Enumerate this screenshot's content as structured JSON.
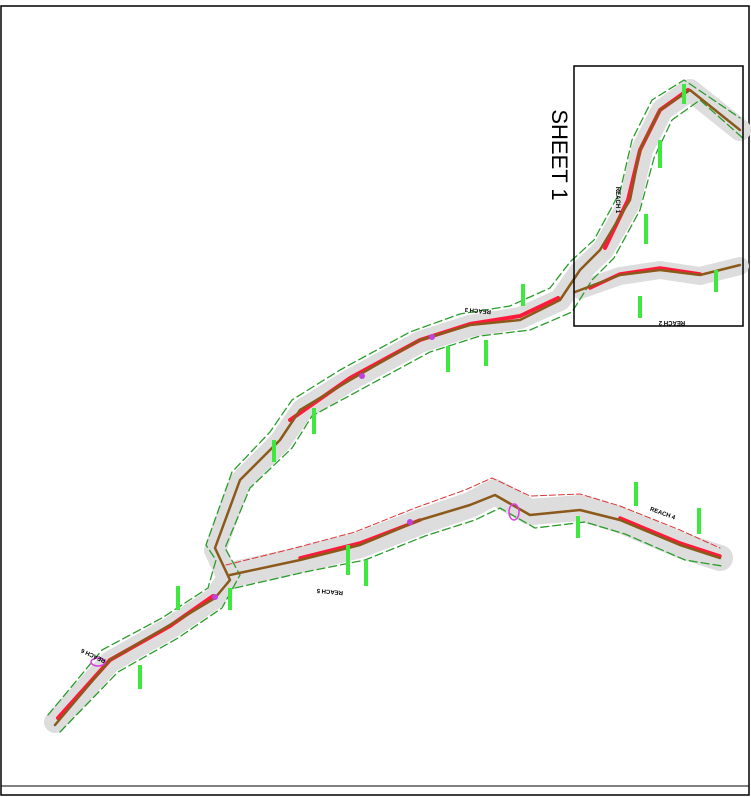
{
  "sheet_label": "SHEET 1",
  "reach_labels": [
    "REACH 1",
    "REACH 2",
    "REACH 3",
    "REACH 4",
    "REACH 5",
    "REACH 6"
  ]
}
